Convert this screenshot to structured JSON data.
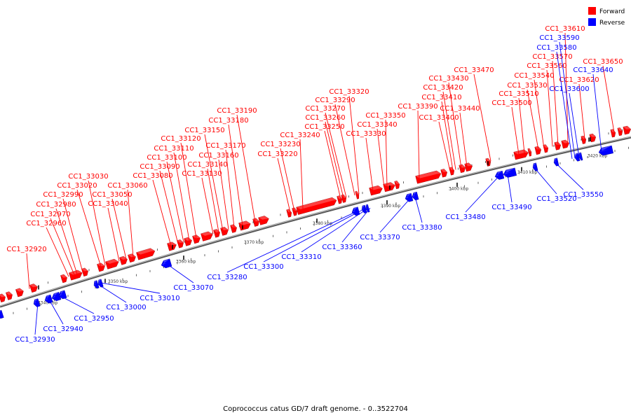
{
  "caption": "Coprococcus catus GD/7 draft genome. - 0..3522704",
  "legend": [
    {
      "label": "Forward",
      "color": "#ff0000"
    },
    {
      "label": "Reverse",
      "color": "#0000ff"
    }
  ],
  "colors": {
    "forward": "#ff0000",
    "reverse": "#0000ff",
    "backbone": "#888888"
  },
  "ticks": [
    "3340 kbp",
    "3350 kbp",
    "3360 kbp",
    "3370 kbp",
    "3380 kbp",
    "3390 kbp",
    "3400 kbp",
    "3410 kbp",
    "3420 kbp"
  ],
  "forward_labels": [
    "CC1_32920",
    "CC1_32960",
    "CC1_32970",
    "CC1_32980",
    "CC1_32990",
    "CC1_33020",
    "CC1_33030",
    "CC1_33040",
    "CC1_33050",
    "CC1_33060",
    "CC1_33080",
    "CC1_33090",
    "CC1_33100",
    "CC1_33110",
    "CC1_33120",
    "CC1_33130",
    "CC1_33140",
    "CC1_33150",
    "CC1_33160",
    "CC1_33170",
    "CC1_33180",
    "CC1_33190",
    "CC1_33220",
    "CC1_33230",
    "CC1_33240",
    "CC1_33250",
    "CC1_33260",
    "CC1_33270",
    "CC1_33290",
    "CC1_33320",
    "CC1_33330",
    "CC1_33340",
    "CC1_33350",
    "CC1_33390",
    "CC1_33400",
    "CC1_33410",
    "CC1_33420",
    "CC1_33430",
    "CC1_33440",
    "CC1_33470",
    "CC1_33500",
    "CC1_33510",
    "CC1_33530",
    "CC1_33540",
    "CC1_33560",
    "CC1_33570",
    "CC1_33610",
    "CC1_33620",
    "CC1_33650"
  ],
  "reverse_labels_top": [
    "CC1_33580",
    "CC1_33590",
    "CC1_33600",
    "CC1_33640"
  ],
  "reverse_labels_bottom": [
    "CC1_32930",
    "CC1_32940",
    "CC1_32950",
    "CC1_33000",
    "CC1_33010",
    "CC1_33070",
    "CC1_33280",
    "CC1_33300",
    "CC1_33310",
    "CC1_33360",
    "CC1_33370",
    "CC1_33380",
    "CC1_33480",
    "CC1_33490",
    "CC1_33520",
    "CC1_33550"
  ]
}
